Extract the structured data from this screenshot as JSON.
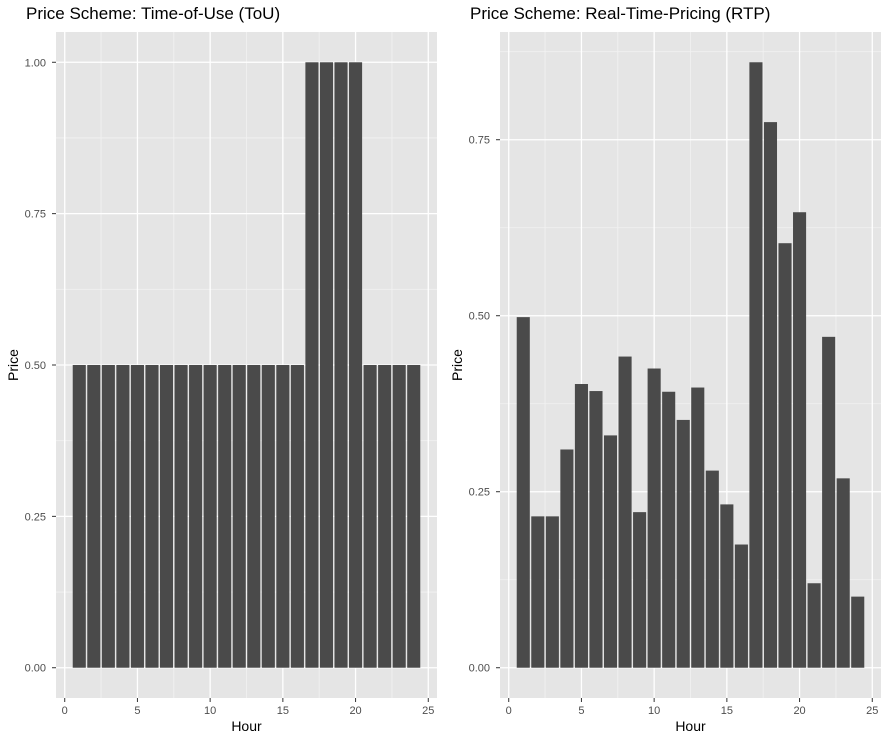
{
  "chart_data": [
    {
      "type": "bar",
      "title": "Price Scheme: Time-of-Use (ToU)",
      "xlabel": "Hour",
      "ylabel": "Price",
      "x": [
        1,
        2,
        3,
        4,
        5,
        6,
        7,
        8,
        9,
        10,
        11,
        12,
        13,
        14,
        15,
        16,
        17,
        18,
        19,
        20,
        21,
        22,
        23,
        24
      ],
      "values": [
        0.5,
        0.5,
        0.5,
        0.5,
        0.5,
        0.5,
        0.5,
        0.5,
        0.5,
        0.5,
        0.5,
        0.5,
        0.5,
        0.5,
        0.5,
        0.5,
        1.0,
        1.0,
        1.0,
        1.0,
        0.5,
        0.5,
        0.5,
        0.5
      ],
      "xlim": [
        -0.6,
        25.6
      ],
      "ylim": [
        -0.05,
        1.05
      ],
      "xticks": [
        0,
        5,
        10,
        15,
        20,
        25
      ],
      "xtick_labels": [
        "0",
        "5",
        "10",
        "15",
        "20",
        "25"
      ],
      "yticks": [
        0,
        0.25,
        0.5,
        0.75,
        1.0
      ],
      "ytick_labels": [
        "0.00",
        "0.25",
        "0.50",
        "0.75",
        "1.00"
      ],
      "grid": true
    },
    {
      "type": "bar",
      "title": "Price Scheme: Real-Time-Pricing (RTP)",
      "xlabel": "Hour",
      "ylabel": "Price",
      "x": [
        1,
        2,
        3,
        4,
        5,
        6,
        7,
        8,
        9,
        10,
        11,
        12,
        13,
        14,
        15,
        16,
        17,
        18,
        19,
        20,
        21,
        22,
        23,
        24
      ],
      "values": [
        0.498,
        0.215,
        0.215,
        0.31,
        0.403,
        0.393,
        0.33,
        0.442,
        0.221,
        0.425,
        0.392,
        0.352,
        0.398,
        0.28,
        0.232,
        0.175,
        0.86,
        0.775,
        0.603,
        0.647,
        0.12,
        0.47,
        0.269,
        0.101
      ],
      "xlim": [
        -0.6,
        25.6
      ],
      "ylim": [
        -0.043,
        0.903
      ],
      "xticks": [
        0,
        5,
        10,
        15,
        20,
        25
      ],
      "xtick_labels": [
        "0",
        "5",
        "10",
        "15",
        "20",
        "25"
      ],
      "yticks": [
        0,
        0.25,
        0.5,
        0.75
      ],
      "ytick_labels": [
        "0.00",
        "0.25",
        "0.50",
        "0.75"
      ],
      "grid": true
    }
  ],
  "colors": {
    "bar": "#4a4a4a",
    "panel_background": "#e5e5e5",
    "grid_major": "#ffffff",
    "grid_minor": "#f2f2f2",
    "tick_text": "#4d4d4d",
    "axis_text": "#000000"
  }
}
